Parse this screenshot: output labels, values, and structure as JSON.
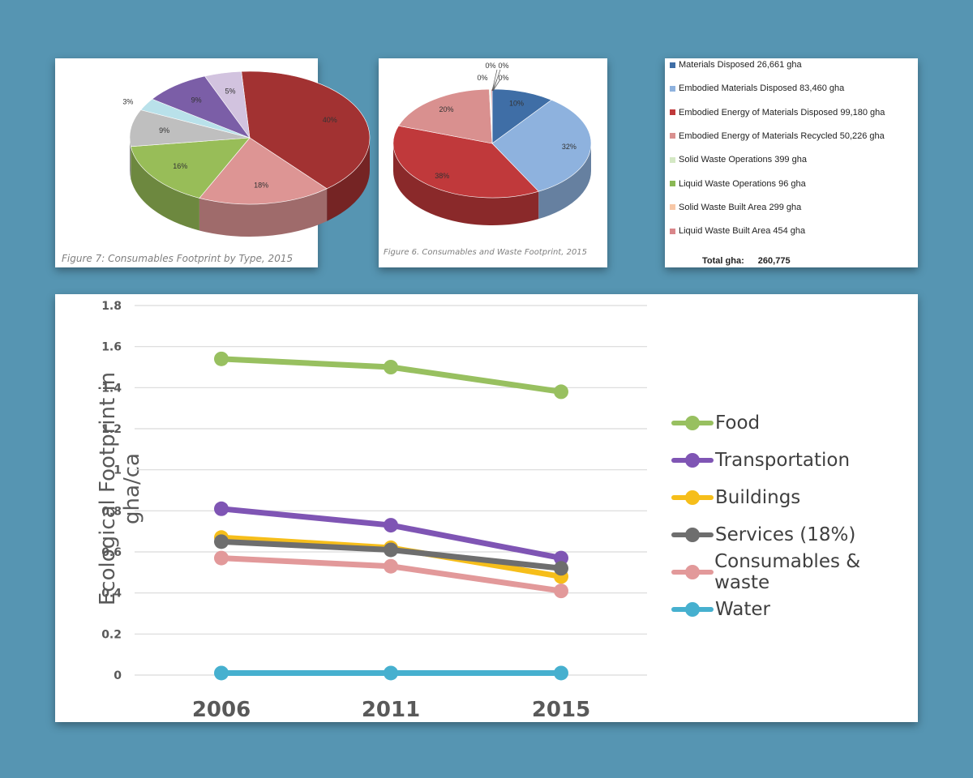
{
  "pie_left": {
    "caption": "Figure 7: Consumables Footprint by Type, 2015",
    "labels": [
      "40%",
      "18%",
      "16%",
      "9%",
      "3%",
      "9%",
      "5%"
    ]
  },
  "pie_mid": {
    "caption": "Figure 6. Consumables and Waste Footprint, 2015",
    "labels": [
      "10%",
      "32%",
      "38%",
      "20%",
      "0%",
      "0%",
      "0%",
      "0%"
    ]
  },
  "legend_box": {
    "items": [
      {
        "label": "Materials Disposed 26,661 gha",
        "color": "#3f6ea6"
      },
      {
        "label": "Embodied Materials Disposed 83,460 gha",
        "color": "#8eb2de"
      },
      {
        "label": "Embodied Energy of Materials Disposed 99,180 gha",
        "color": "#c0393b"
      },
      {
        "label": "Embodied Energy of Materials Recycled 50,226 gha",
        "color": "#d9908f"
      },
      {
        "label": "Solid Waste Operations 399 gha",
        "color": "#d4e8c4"
      },
      {
        "label": "Liquid Waste Operations 96 gha",
        "color": "#8ab854"
      },
      {
        "label": "Solid Waste Built Area 299 gha",
        "color": "#f7c7a6"
      },
      {
        "label": "Liquid Waste Built Area 454 gha",
        "color": "#d9868a"
      }
    ],
    "total_label": "Total gha:",
    "total_value": "260,775"
  },
  "chart_data": [
    {
      "type": "pie",
      "caption": "Figure 7: Consumables Footprint by Type, 2015",
      "values": [
        40,
        18,
        16,
        9,
        3,
        9,
        5
      ],
      "labels": [
        "40%",
        "18%",
        "16%",
        "9%",
        "3%",
        "9%",
        "5%"
      ],
      "colors": [
        "#a23232",
        "#dd9594",
        "#98bd58",
        "#bfbfbf",
        "#b9e1ea",
        "#7b5ea7",
        "#d2c3df"
      ]
    },
    {
      "type": "pie",
      "caption": "Figure 6. Consumables and Waste Footprint, 2015",
      "categories": [
        "Materials Disposed",
        "Embodied Materials Disposed",
        "Embodied Energy of Materials Disposed",
        "Embodied Energy of Materials Recycled",
        "Solid Waste Operations",
        "Liquid Waste Operations",
        "Solid Waste Built Area",
        "Liquid Waste Built Area"
      ],
      "values": [
        26661,
        83460,
        99180,
        50226,
        399,
        96,
        299,
        454
      ],
      "labels": [
        "10%",
        "32%",
        "38%",
        "20%",
        "0%",
        "0%",
        "0%",
        "0%"
      ],
      "colors": [
        "#3f6ea6",
        "#8eb2de",
        "#c0393b",
        "#d9908f",
        "#d4e8c4",
        "#8ab854",
        "#f7c7a6",
        "#d9868a"
      ]
    },
    {
      "type": "line",
      "categories": [
        "2006",
        "2011",
        "2015"
      ],
      "ylabel": "Ecological Footprint in gha/ca",
      "ylim": [
        0,
        1.8
      ],
      "yticks": [
        "0",
        "0.2",
        "0.4",
        "0.6",
        "0.8",
        "1",
        "1.2",
        "1.4",
        "1.6",
        "1.8"
      ],
      "grid": true,
      "legend": "right",
      "series": [
        {
          "name": "Food",
          "values": [
            1.54,
            1.5,
            1.38
          ],
          "color": "#98c060"
        },
        {
          "name": "Transportation",
          "values": [
            0.81,
            0.73,
            0.57
          ],
          "color": "#7f55b4"
        },
        {
          "name": "Buildings",
          "values": [
            0.67,
            0.62,
            0.48
          ],
          "color": "#f6be1a"
        },
        {
          "name": "Services (18%)",
          "values": [
            0.65,
            0.61,
            0.52
          ],
          "color": "#6e6e6e"
        },
        {
          "name": "Consumables & waste",
          "values": [
            0.57,
            0.53,
            0.41
          ],
          "color": "#e2999a"
        },
        {
          "name": "Water",
          "values": [
            0.01,
            0.01,
            0.01
          ],
          "color": "#46b0cf"
        }
      ]
    }
  ]
}
